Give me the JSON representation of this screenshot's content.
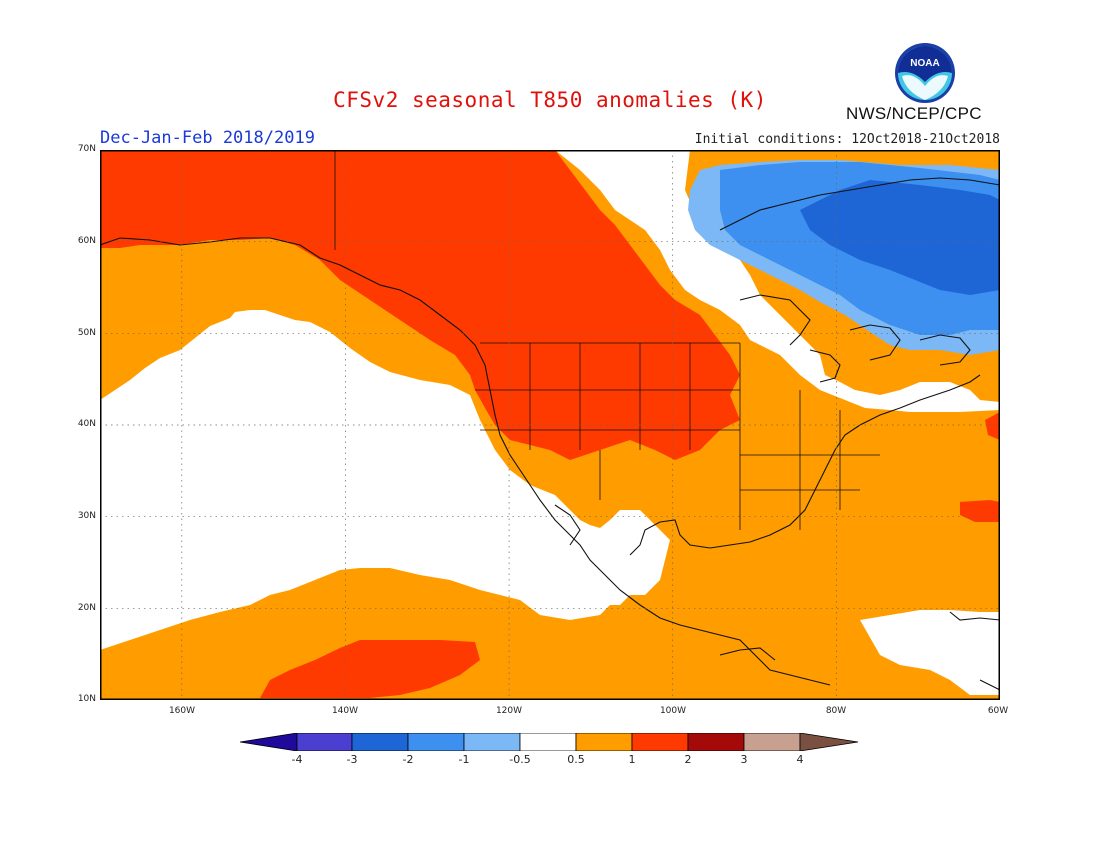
{
  "title": "CFSv2 seasonal T850 anomalies (K)",
  "season": "Dec-Jan-Feb 2018/2019",
  "initial_conditions": "Initial conditions: 12Oct2018-21Oct2018",
  "agency": "NWS/NCEP/CPC",
  "logo_text": "NOAA",
  "logo_icon": "noaa-logo",
  "map": {
    "lat_labels": [
      "70N",
      "60N",
      "50N",
      "40N",
      "30N",
      "20N",
      "10N"
    ],
    "lon_labels": [
      "160W",
      "140W",
      "120W",
      "100W",
      "80W",
      "60W"
    ],
    "lon_range": [
      -170,
      -60
    ],
    "lat_range": [
      10,
      70
    ]
  },
  "colorbar": {
    "labels": [
      "-4",
      "-3",
      "-2",
      "-1",
      "-0.5",
      "0.5",
      "1",
      "2",
      "3",
      "4"
    ],
    "colors": [
      "#1f0a9c",
      "#4b3fd1",
      "#1e66d6",
      "#3d8ff0",
      "#7cb8f5",
      "#ffffff",
      "#ff9c00",
      "#ff3a00",
      "#a50a0a",
      "#c8a090",
      "#7a5040"
    ]
  },
  "colors": {
    "anom_05_1": "#ff9c00",
    "anom_1_2": "#ff3a00",
    "anom_neg1_05": "#7cb8f5",
    "anom_neg2_1": "#3d8ff0",
    "anom_neg3_2": "#1e66d6",
    "title": "#e0100a",
    "season": "#1a3ad8"
  }
}
